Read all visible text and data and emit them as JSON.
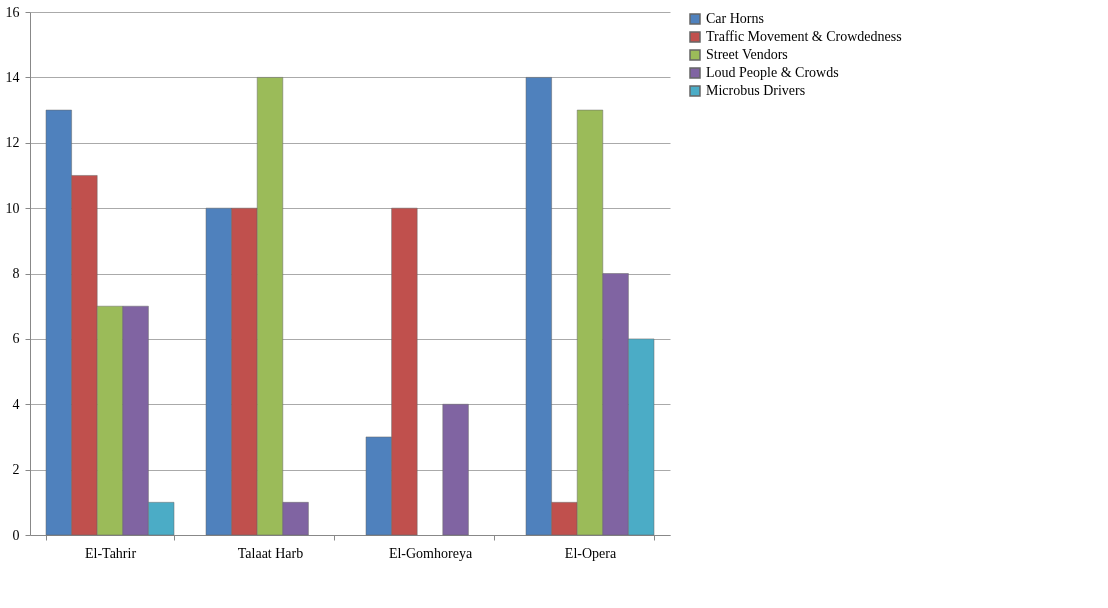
{
  "chart_data": {
    "type": "bar",
    "categories": [
      "El-Tahrir",
      "Talaat Harb",
      "El-Gomhoreya",
      "El-Opera"
    ],
    "series": [
      {
        "name": "Car Horns",
        "color": "#4f81bd",
        "values": [
          13,
          10,
          3,
          14
        ]
      },
      {
        "name": "Traffic Movement & Crowdedness",
        "color": "#c0504d",
        "values": [
          11,
          10,
          10,
          1
        ]
      },
      {
        "name": "Street Vendors",
        "color": "#9bbb59",
        "values": [
          7,
          14,
          null,
          13
        ]
      },
      {
        "name": "Loud People & Crowds",
        "color": "#8064a2",
        "values": [
          7,
          1,
          4,
          8
        ]
      },
      {
        "name": "Microbus Drivers",
        "color": "#4bacc6",
        "values": [
          1,
          null,
          null,
          6
        ]
      }
    ],
    "ylim": [
      0,
      16
    ],
    "yticks": [
      0,
      2,
      4,
      6,
      8,
      10,
      12,
      14,
      16
    ],
    "grid": "y",
    "legend": "right"
  }
}
